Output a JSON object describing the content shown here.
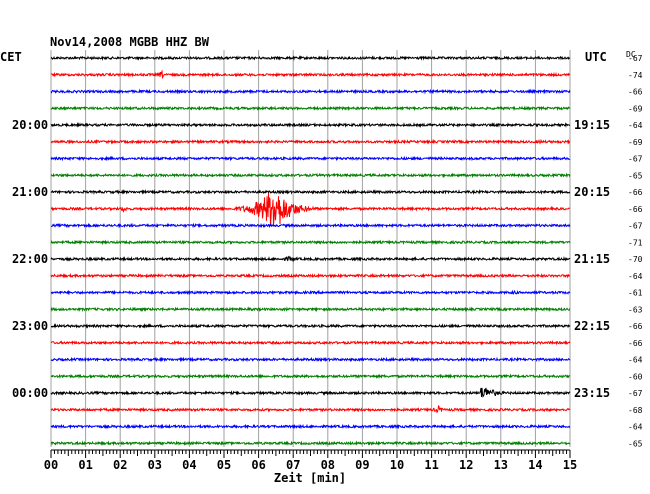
{
  "chart_data": {
    "type": "line",
    "title": "Nov14,2008   MGBB HHZ BW",
    "left_timezone_label": "CET",
    "right_timezone_label": "UTC",
    "dc_label": "DC",
    "xlabel": "Zeit [min]",
    "xlim": [
      0,
      15
    ],
    "x_ticks": [
      "00",
      "01",
      "02",
      "03",
      "04",
      "05",
      "06",
      "07",
      "08",
      "09",
      "10",
      "11",
      "12",
      "13",
      "14",
      "15"
    ],
    "grid": true,
    "trace_colors": [
      "#000000",
      "#ff0000",
      "#0000ff",
      "#008000"
    ],
    "left_hour_labels": [
      {
        "trace": 4,
        "label": "20:00"
      },
      {
        "trace": 8,
        "label": "21:00"
      },
      {
        "trace": 12,
        "label": "22:00"
      },
      {
        "trace": 16,
        "label": "23:00"
      },
      {
        "trace": 20,
        "label": "00:00"
      }
    ],
    "right_hour_labels": [
      {
        "trace": 4,
        "label": "19:15"
      },
      {
        "trace": 8,
        "label": "20:15"
      },
      {
        "trace": 12,
        "label": "21:15"
      },
      {
        "trace": 16,
        "label": "22:15"
      },
      {
        "trace": 20,
        "label": "23:15"
      }
    ],
    "dc_offsets": [
      "-67",
      "-74",
      "-66",
      "-69",
      "-64",
      "-69",
      "-67",
      "-65",
      "-66",
      "-66",
      "-67",
      "-71",
      "-70",
      "-64",
      "-61",
      "-63",
      "-66",
      "-66",
      "-64",
      "-60",
      "-67",
      "-68",
      "-64",
      "-65"
    ],
    "events": [
      {
        "trace": 1,
        "start_min": 3.0,
        "center_min": 3.2,
        "amplitude": 4,
        "decay": 0.3
      },
      {
        "trace": 9,
        "start_min": 5.3,
        "center_min": 6.45,
        "amplitude": 24,
        "decay": 1.2
      },
      {
        "trace": 9,
        "start_min": 1.8,
        "center_min": 2.1,
        "amplitude": 3,
        "decay": 0.4
      },
      {
        "trace": 12,
        "start_min": 6.0,
        "center_min": 6.9,
        "amplitude": 3,
        "decay": 0.6
      },
      {
        "trace": 20,
        "start_min": 12.4,
        "center_min": 12.5,
        "amplitude": 7,
        "decay": 1.0
      },
      {
        "trace": 21,
        "start_min": 10.9,
        "center_min": 11.2,
        "amplitude": 4,
        "decay": 0.4
      },
      {
        "trace": 14,
        "start_min": 13.2,
        "center_min": 13.4,
        "amplitude": 2,
        "decay": 0.5
      },
      {
        "trace": 5,
        "start_min": 13.8,
        "center_min": 14.1,
        "amplitude": 2,
        "decay": 0.6
      }
    ]
  }
}
